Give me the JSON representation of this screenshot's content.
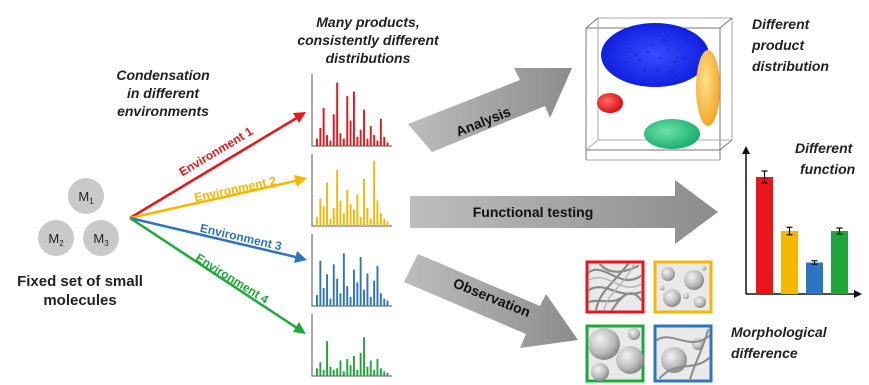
{
  "molecules": {
    "caption_line1": "Fixed set of small",
    "caption_line2": "molecules",
    "m1_base": "M",
    "m1_sub": "1",
    "m2_base": "M",
    "m2_sub": "2",
    "m3_base": "M",
    "m3_sub": "3"
  },
  "condensation": {
    "line1": "Condensation",
    "line2": "in different",
    "line3": "environments"
  },
  "products": {
    "line1": "Many products,",
    "line2": "consistently different",
    "line3": "distributions"
  },
  "environments": [
    {
      "label": "Environment 1",
      "color": "#e8161b"
    },
    {
      "label": "Environment 2",
      "color": "#f5b700"
    },
    {
      "label": "Environment 3",
      "color": "#2e74c0"
    },
    {
      "label": "Environment 4",
      "color": "#1fa83a"
    }
  ],
  "distributions": [
    [
      8,
      20,
      42,
      12,
      6,
      35,
      70,
      14,
      8,
      55,
      28,
      60,
      10,
      18,
      40,
      8,
      22,
      12,
      6,
      30,
      10,
      4
    ],
    [
      10,
      30,
      22,
      48,
      8,
      20,
      62,
      28,
      14,
      40,
      24,
      18,
      35,
      10,
      52,
      20,
      8,
      72,
      28,
      14,
      8,
      5
    ],
    [
      12,
      50,
      20,
      35,
      8,
      46,
      30,
      14,
      58,
      22,
      10,
      40,
      26,
      54,
      18,
      36,
      10,
      28,
      44,
      14,
      8,
      6
    ],
    [
      10,
      18,
      8,
      45,
      12,
      8,
      10,
      20,
      6,
      22,
      14,
      26,
      8,
      30,
      50,
      12,
      20,
      8,
      22,
      10,
      6,
      4
    ]
  ],
  "arrows": {
    "analysis": "Analysis",
    "functional": "Functional testing",
    "observation": "Observation"
  },
  "distribution_result": {
    "line1": "Different",
    "line2": "product",
    "line3": "distribution"
  },
  "function_result": {
    "line1": "Different",
    "line2": "function"
  },
  "function_bars": [
    {
      "value": 0.78,
      "err": 0.04,
      "color": "#e8161b"
    },
    {
      "value": 0.42,
      "err": 0.025,
      "color": "#f5b700"
    },
    {
      "value": 0.21,
      "err": 0.012,
      "color": "#2e74c0"
    },
    {
      "value": 0.42,
      "err": 0.02,
      "color": "#1fa83a"
    }
  ],
  "morphology_result": {
    "line1": "Morphological",
    "line2": "difference"
  }
}
